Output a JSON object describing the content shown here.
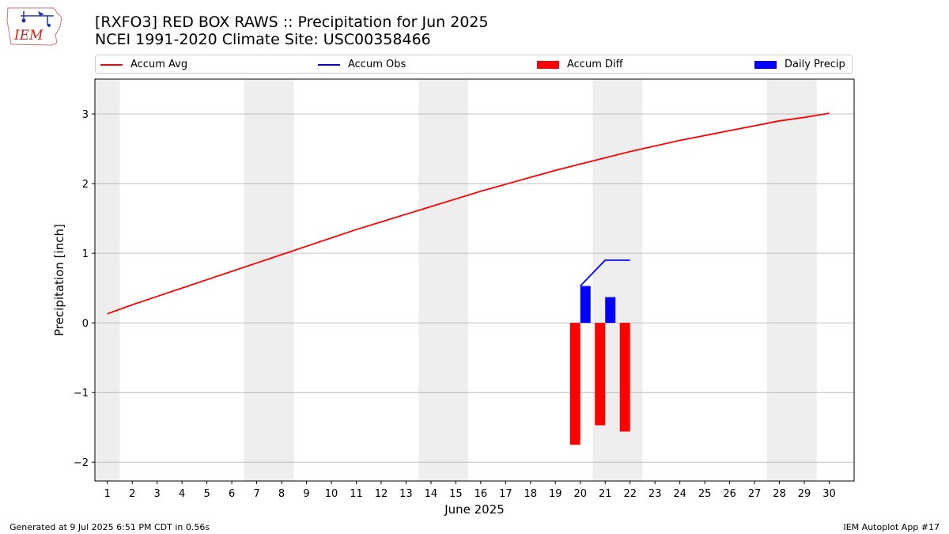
{
  "header": {
    "title_line1": "[RXFO3] RED BOX RAWS :: Precipitation for Jun 2025",
    "title_line2": "NCEI 1991-2020 Climate Site: USC00358466",
    "logo_text": "IEM"
  },
  "legend": {
    "items": [
      {
        "label": "Accum Avg",
        "kind": "line",
        "color": "#ff0000"
      },
      {
        "label": "Accum Obs",
        "kind": "line",
        "color": "#0000ff"
      },
      {
        "label": "Accum Diff",
        "kind": "box",
        "color": "#ff0000"
      },
      {
        "label": "Daily Precip",
        "kind": "box",
        "color": "#0000ff"
      }
    ]
  },
  "footer": {
    "generated": "Generated at 9 Jul 2025 6:51 PM CDT in 0.56s",
    "app": "IEM Autoplot App #17"
  },
  "chart_data": {
    "type": "bar",
    "xlabel": "June 2025",
    "ylabel": "Precipitation [inch]",
    "xlim": [
      0.5,
      31
    ],
    "ylim": [
      -2.27,
      3.5
    ],
    "yticks": [
      -2,
      -1,
      0,
      1,
      2,
      3
    ],
    "xticks": [
      1,
      2,
      3,
      4,
      5,
      6,
      7,
      8,
      9,
      10,
      11,
      12,
      13,
      14,
      15,
      16,
      17,
      18,
      19,
      20,
      21,
      22,
      23,
      24,
      25,
      26,
      27,
      28,
      29,
      30
    ],
    "grid": "horizontal",
    "legend_position": "top",
    "weekend_shading": [
      [
        0.5,
        1.5
      ],
      [
        6.5,
        8.5
      ],
      [
        13.5,
        15.5
      ],
      [
        20.5,
        22.5
      ],
      [
        27.5,
        29.5
      ]
    ],
    "series": [
      {
        "name": "Accum Avg",
        "type": "line",
        "color": "#ff0000",
        "x": [
          1,
          2,
          3,
          4,
          5,
          6,
          7,
          8,
          9,
          10,
          11,
          12,
          13,
          14,
          15,
          16,
          17,
          18,
          19,
          20,
          21,
          22,
          23,
          24,
          25,
          26,
          27,
          28,
          29,
          30
        ],
        "values": [
          0.13,
          0.26,
          0.38,
          0.5,
          0.62,
          0.74,
          0.86,
          0.98,
          1.1,
          1.22,
          1.34,
          1.45,
          1.56,
          1.67,
          1.78,
          1.89,
          1.99,
          2.09,
          2.19,
          2.28,
          2.37,
          2.46,
          2.54,
          2.62,
          2.69,
          2.76,
          2.83,
          2.9,
          2.95,
          3.01
        ]
      },
      {
        "name": "Accum Obs",
        "type": "line",
        "color": "#0000ff",
        "x": [
          20,
          21,
          22
        ],
        "values": [
          0.53,
          0.9,
          0.9
        ]
      },
      {
        "name": "Accum Diff",
        "type": "bar",
        "color": "#ff0000",
        "x": [
          20,
          21,
          22
        ],
        "values": [
          -1.75,
          -1.47,
          -1.56
        ]
      },
      {
        "name": "Daily Precip",
        "type": "bar",
        "color": "#0000ff",
        "x": [
          20,
          21
        ],
        "values": [
          0.53,
          0.37
        ]
      }
    ]
  }
}
